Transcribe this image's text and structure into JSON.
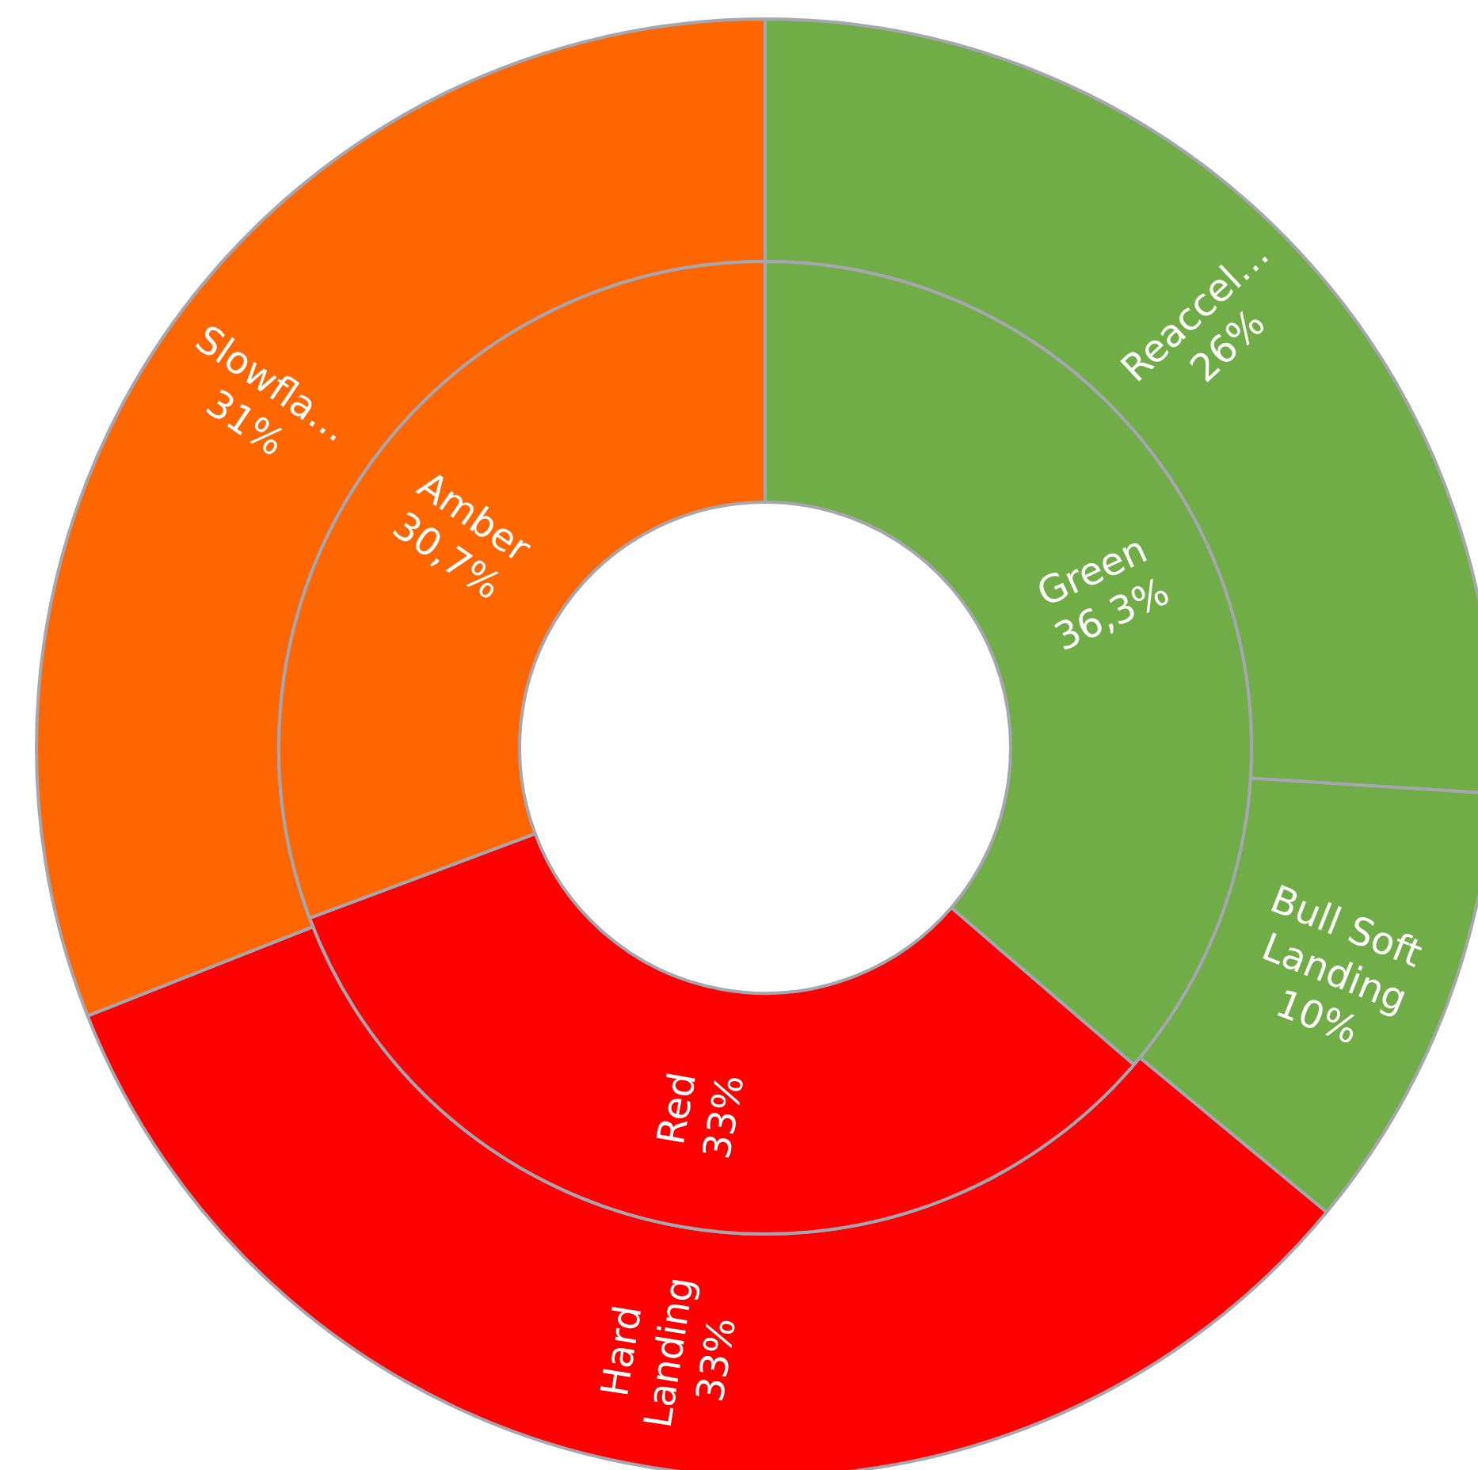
{
  "chart_data": [
    {
      "type": "donut",
      "categories": [
        "Green",
        "Red",
        "Amber"
      ],
      "values": [
        36.3,
        33,
        30.7
      ],
      "value_labels": [
        "36,3%",
        "33%",
        "30,7%"
      ],
      "colors": [
        "#70ad47",
        "#ff0000",
        "#ff6600"
      ],
      "legend": false
    },
    {
      "type": "donut",
      "categories": [
        "Reaccel…",
        "Bull Soft Landing",
        "Hard Landing",
        "Slowfla…"
      ],
      "values": [
        26,
        10,
        33,
        31
      ],
      "value_labels": [
        "26%",
        "10%",
        "33%",
        "31%"
      ],
      "colors": [
        "#70ad47",
        "#70ad47",
        "#ff0000",
        "#ff6600"
      ],
      "legend": false
    }
  ]
}
